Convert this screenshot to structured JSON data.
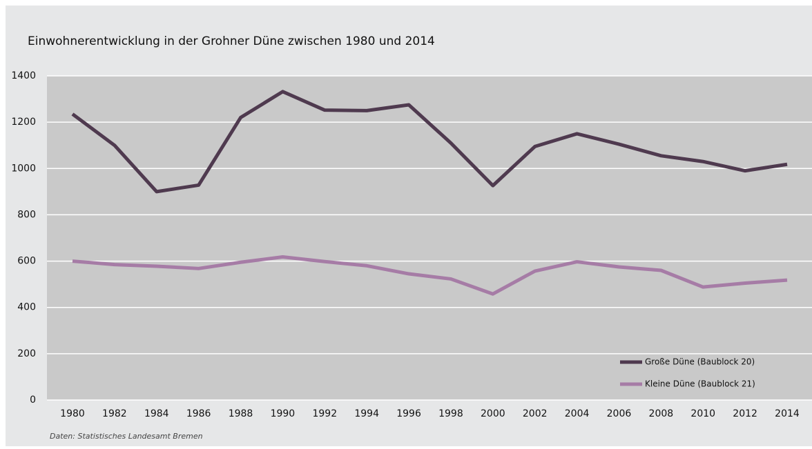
{
  "chart_data": {
    "type": "line",
    "title": "Einwohnerentwicklung in der Grohner Düne zwischen 1980 und 2014",
    "source": "Daten: Statistisches Landesamt Bremen",
    "categories": [
      "1980",
      "1982",
      "1984",
      "1986",
      "1988",
      "1990",
      "1992",
      "1994",
      "1996",
      "1998",
      "2000",
      "2002",
      "2004",
      "2006",
      "2008",
      "2010",
      "2012",
      "2014"
    ],
    "series": [
      {
        "name": "Große Düne (Baublock 20)",
        "color": "#4f3a4f",
        "values": [
          1235,
          1100,
          900,
          928,
          1220,
          1332,
          1252,
          1250,
          1275,
          1110,
          926,
          1095,
          1150,
          1105,
          1055,
          1030,
          990,
          1018
        ]
      },
      {
        "name": "Kleine Düne (Baublock 21)",
        "color": "#a67ca6",
        "values": [
          600,
          585,
          578,
          568,
          595,
          618,
          598,
          580,
          545,
          523,
          458,
          557,
          597,
          575,
          560,
          488,
          505,
          518
        ]
      }
    ],
    "ylim": [
      0,
      1400
    ],
    "yticks": [
      0,
      200,
      400,
      600,
      800,
      1000,
      1200,
      1400
    ],
    "grid": true,
    "legend": "lower right"
  }
}
